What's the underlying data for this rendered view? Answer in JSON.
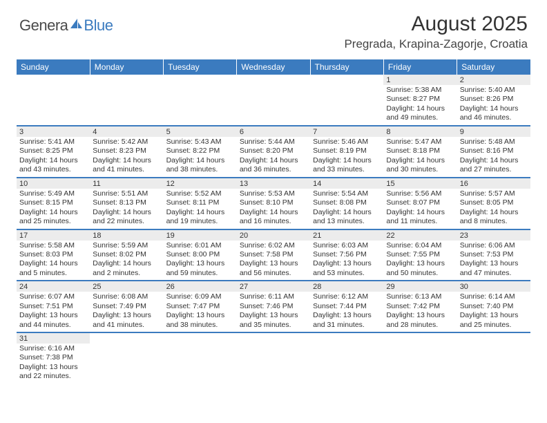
{
  "logo": {
    "text1": "Genera",
    "text2": "Blue"
  },
  "title": "August 2025",
  "location": "Pregrada, Krapina-Zagorje, Croatia",
  "colors": {
    "header_bg": "#3b7bbf",
    "header_text": "#ffffff",
    "daynum_bg": "#ececec",
    "border": "#3b7bbf",
    "logo_gray": "#4a4a4a",
    "logo_blue": "#3b7bbf"
  },
  "weekdays": [
    "Sunday",
    "Monday",
    "Tuesday",
    "Wednesday",
    "Thursday",
    "Friday",
    "Saturday"
  ],
  "weeks": [
    [
      null,
      null,
      null,
      null,
      null,
      {
        "d": "1",
        "sr": "5:38 AM",
        "ss": "8:27 PM",
        "dl": "14 hours and 49 minutes."
      },
      {
        "d": "2",
        "sr": "5:40 AM",
        "ss": "8:26 PM",
        "dl": "14 hours and 46 minutes."
      }
    ],
    [
      {
        "d": "3",
        "sr": "5:41 AM",
        "ss": "8:25 PM",
        "dl": "14 hours and 43 minutes."
      },
      {
        "d": "4",
        "sr": "5:42 AM",
        "ss": "8:23 PM",
        "dl": "14 hours and 41 minutes."
      },
      {
        "d": "5",
        "sr": "5:43 AM",
        "ss": "8:22 PM",
        "dl": "14 hours and 38 minutes."
      },
      {
        "d": "6",
        "sr": "5:44 AM",
        "ss": "8:20 PM",
        "dl": "14 hours and 36 minutes."
      },
      {
        "d": "7",
        "sr": "5:46 AM",
        "ss": "8:19 PM",
        "dl": "14 hours and 33 minutes."
      },
      {
        "d": "8",
        "sr": "5:47 AM",
        "ss": "8:18 PM",
        "dl": "14 hours and 30 minutes."
      },
      {
        "d": "9",
        "sr": "5:48 AM",
        "ss": "8:16 PM",
        "dl": "14 hours and 27 minutes."
      }
    ],
    [
      {
        "d": "10",
        "sr": "5:49 AM",
        "ss": "8:15 PM",
        "dl": "14 hours and 25 minutes."
      },
      {
        "d": "11",
        "sr": "5:51 AM",
        "ss": "8:13 PM",
        "dl": "14 hours and 22 minutes."
      },
      {
        "d": "12",
        "sr": "5:52 AM",
        "ss": "8:11 PM",
        "dl": "14 hours and 19 minutes."
      },
      {
        "d": "13",
        "sr": "5:53 AM",
        "ss": "8:10 PM",
        "dl": "14 hours and 16 minutes."
      },
      {
        "d": "14",
        "sr": "5:54 AM",
        "ss": "8:08 PM",
        "dl": "14 hours and 13 minutes."
      },
      {
        "d": "15",
        "sr": "5:56 AM",
        "ss": "8:07 PM",
        "dl": "14 hours and 11 minutes."
      },
      {
        "d": "16",
        "sr": "5:57 AM",
        "ss": "8:05 PM",
        "dl": "14 hours and 8 minutes."
      }
    ],
    [
      {
        "d": "17",
        "sr": "5:58 AM",
        "ss": "8:03 PM",
        "dl": "14 hours and 5 minutes."
      },
      {
        "d": "18",
        "sr": "5:59 AM",
        "ss": "8:02 PM",
        "dl": "14 hours and 2 minutes."
      },
      {
        "d": "19",
        "sr": "6:01 AM",
        "ss": "8:00 PM",
        "dl": "13 hours and 59 minutes."
      },
      {
        "d": "20",
        "sr": "6:02 AM",
        "ss": "7:58 PM",
        "dl": "13 hours and 56 minutes."
      },
      {
        "d": "21",
        "sr": "6:03 AM",
        "ss": "7:56 PM",
        "dl": "13 hours and 53 minutes."
      },
      {
        "d": "22",
        "sr": "6:04 AM",
        "ss": "7:55 PM",
        "dl": "13 hours and 50 minutes."
      },
      {
        "d": "23",
        "sr": "6:06 AM",
        "ss": "7:53 PM",
        "dl": "13 hours and 47 minutes."
      }
    ],
    [
      {
        "d": "24",
        "sr": "6:07 AM",
        "ss": "7:51 PM",
        "dl": "13 hours and 44 minutes."
      },
      {
        "d": "25",
        "sr": "6:08 AM",
        "ss": "7:49 PM",
        "dl": "13 hours and 41 minutes."
      },
      {
        "d": "26",
        "sr": "6:09 AM",
        "ss": "7:47 PM",
        "dl": "13 hours and 38 minutes."
      },
      {
        "d": "27",
        "sr": "6:11 AM",
        "ss": "7:46 PM",
        "dl": "13 hours and 35 minutes."
      },
      {
        "d": "28",
        "sr": "6:12 AM",
        "ss": "7:44 PM",
        "dl": "13 hours and 31 minutes."
      },
      {
        "d": "29",
        "sr": "6:13 AM",
        "ss": "7:42 PM",
        "dl": "13 hours and 28 minutes."
      },
      {
        "d": "30",
        "sr": "6:14 AM",
        "ss": "7:40 PM",
        "dl": "13 hours and 25 minutes."
      }
    ],
    [
      {
        "d": "31",
        "sr": "6:16 AM",
        "ss": "7:38 PM",
        "dl": "13 hours and 22 minutes."
      },
      null,
      null,
      null,
      null,
      null,
      null
    ]
  ],
  "labels": {
    "sunrise": "Sunrise:",
    "sunset": "Sunset:",
    "daylight": "Daylight:"
  }
}
